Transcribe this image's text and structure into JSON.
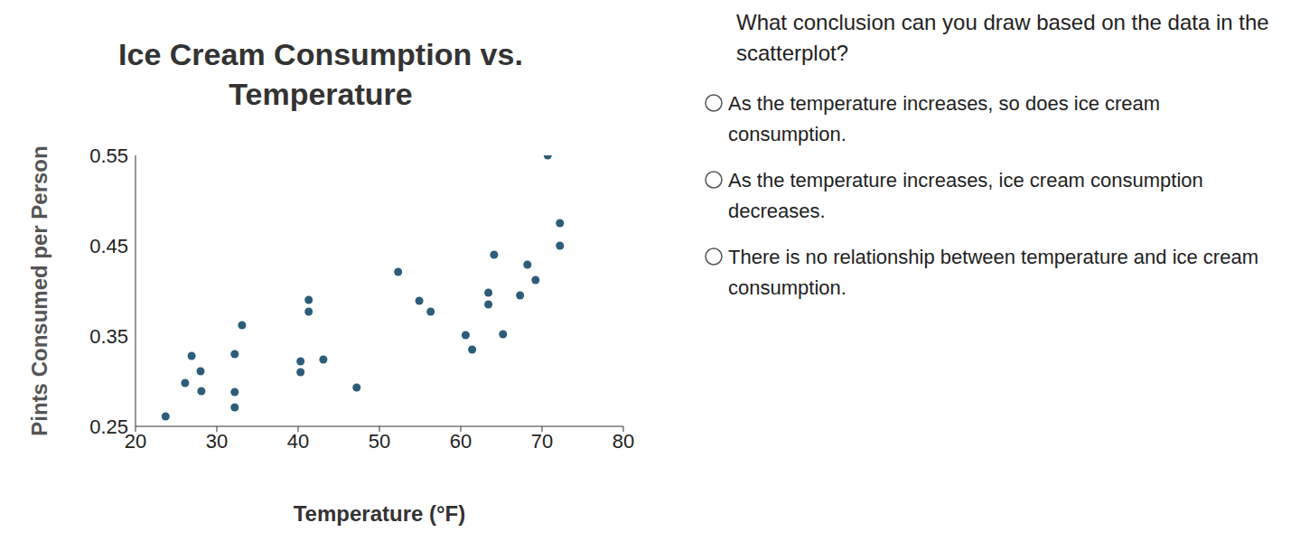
{
  "chart_data": {
    "type": "scatter",
    "title": "Ice Cream Consumption vs. Temperature",
    "xlabel": "Temperature (°F)",
    "ylabel": "Pints Consumed per Person",
    "x": [
      23.7,
      26.1,
      26.9,
      28.0,
      28.1,
      32.2,
      32.2,
      32.2,
      33.1,
      40.3,
      40.3,
      41.3,
      41.3,
      43.1,
      47.2,
      52.3,
      54.9,
      56.3,
      60.6,
      61.4,
      63.4,
      63.4,
      64.1,
      65.2,
      67.3,
      68.2,
      69.2,
      70.7,
      72.2,
      72.2
    ],
    "values": [
      0.261,
      0.298,
      0.328,
      0.311,
      0.289,
      0.33,
      0.288,
      0.271,
      0.362,
      0.322,
      0.31,
      0.39,
      0.377,
      0.324,
      0.293,
      0.421,
      0.389,
      0.377,
      0.351,
      0.335,
      0.398,
      0.385,
      0.44,
      0.352,
      0.395,
      0.429,
      0.412,
      0.55,
      0.475,
      0.45
    ],
    "color": "#2d5d78",
    "marker": "circle",
    "xlim": [
      20,
      80
    ],
    "ylim": [
      0.25,
      0.55
    ],
    "xticks": [
      20,
      30,
      40,
      50,
      60,
      70,
      80
    ],
    "yticks": [
      0.25,
      0.35,
      0.45,
      0.55
    ],
    "grid": false
  },
  "question": "What conclusion can you draw based on the data in the scatterplot?",
  "options": [
    "As the temperature increases, so does ice cream consumption.",
    "As the temperature increases, ice cream consumption decreases.",
    "There is no relationship between temperature and ice cream consumption."
  ]
}
